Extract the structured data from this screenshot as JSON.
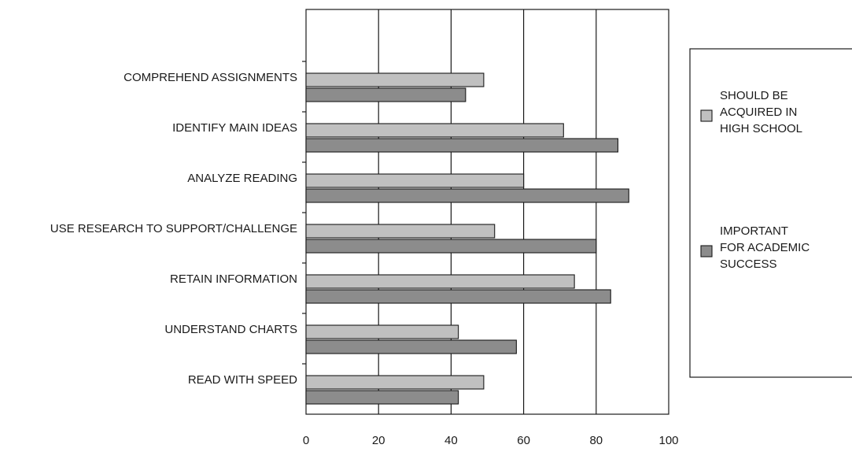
{
  "chart_data": {
    "type": "bar",
    "orientation": "horizontal",
    "title": "",
    "xlabel": "",
    "ylabel": "",
    "categories": [
      "COMPREHEND ASSIGNMENTS",
      "IDENTIFY MAIN IDEAS",
      "ANALYZE READING",
      "USE RESEARCH TO SUPPORT/CHALLENGE",
      "RETAIN INFORMATION",
      "UNDERSTAND CHARTS",
      "READ WITH SPEED"
    ],
    "series": [
      {
        "name": "SHOULD BE ACQUIRED IN HIGH SCHOOL",
        "legend_lines": [
          "SHOULD BE",
          "ACQUIRED IN",
          "HIGH SCHOOL"
        ],
        "color": "#c0c0c0",
        "values": [
          49,
          71,
          60,
          52,
          74,
          42,
          49
        ]
      },
      {
        "name": "IMPORTANT FOR ACADEMIC SUCCESS",
        "legend_lines": [
          "IMPORTANT",
          "FOR ACADEMIC",
          "SUCCESS"
        ],
        "color": "#8c8c8c",
        "values": [
          44,
          86,
          89,
          80,
          84,
          58,
          42
        ]
      }
    ],
    "xlim": [
      0,
      100
    ],
    "xticks": [
      0,
      20,
      40,
      60,
      80,
      100
    ],
    "grid": true,
    "legend_position": "right"
  }
}
